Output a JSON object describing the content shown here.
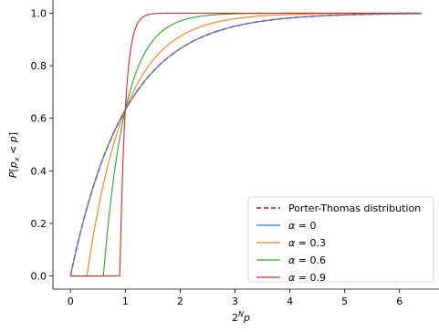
{
  "chart_data": {
    "type": "line",
    "title": "",
    "xlabel": "2^N p",
    "ylabel": "P[p_x < p]",
    "xlim": [
      -0.32,
      6.72
    ],
    "ylim": [
      -0.05,
      1.05
    ],
    "xticks": [
      0,
      1,
      2,
      3,
      4,
      5,
      6
    ],
    "yticks": [
      0.0,
      0.2,
      0.4,
      0.6,
      0.8,
      1.0
    ],
    "xtick_labels": [
      "0",
      "1",
      "2",
      "3",
      "4",
      "5",
      "6"
    ],
    "ytick_labels": [
      "0.0",
      "0.2",
      "0.4",
      "0.6",
      "0.8",
      "1.0"
    ],
    "x_range": [
      0,
      6.4
    ],
    "grid": false,
    "legend_position": "lower-right",
    "series": [
      {
        "name": "Porter-Thomas distribution",
        "alpha": 0,
        "style": "dashed",
        "color": "#d62728",
        "stroke": "#7e6ea0"
      },
      {
        "name": "α = 0",
        "alpha": 0.0,
        "style": "solid",
        "color": "#1f77b4"
      },
      {
        "name": "α = 0.3",
        "alpha": 0.3,
        "style": "solid",
        "color": "#ff7f0e"
      },
      {
        "name": "α = 0.6",
        "alpha": 0.6,
        "style": "solid",
        "color": "#2ca02c"
      },
      {
        "name": "α = 0.9",
        "alpha": 0.9,
        "style": "solid",
        "color": "#d62728"
      }
    ],
    "curve_points": [
      {
        "name": "α = 0",
        "x": [
          0,
          0.5,
          1,
          2,
          3,
          4,
          5,
          6.4
        ],
        "y": [
          0.0,
          0.393,
          0.632,
          0.865,
          0.95,
          0.982,
          0.993,
          0.998
        ]
      },
      {
        "name": "α = 0.3",
        "x": [
          0,
          0.3,
          0.5,
          1,
          1.5,
          2,
          3,
          6.4
        ],
        "y": [
          0.0,
          0.0,
          0.436,
          0.632,
          0.866,
          0.95,
          0.994,
          1.0
        ]
      },
      {
        "name": "α = 0.6",
        "x": [
          0,
          0.6,
          0.8,
          1,
          1.2,
          1.6,
          2,
          6.4
        ],
        "y": [
          0.0,
          0.0,
          0.394,
          0.632,
          0.865,
          0.982,
          0.998,
          1.0
        ]
      },
      {
        "name": "α = 0.9",
        "x": [
          0,
          0.9,
          0.95,
          1,
          1.05,
          1.2,
          1.5,
          6.4
        ],
        "y": [
          0.0,
          0.0,
          0.393,
          0.632,
          0.777,
          0.95,
          1.0,
          1.0
        ]
      }
    ]
  }
}
